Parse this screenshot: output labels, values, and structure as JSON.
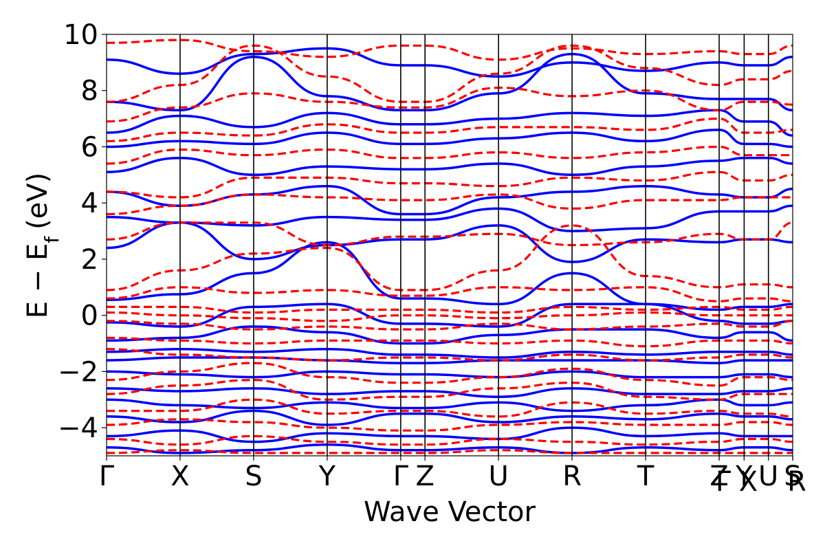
{
  "chart_data": {
    "type": "line",
    "title": "",
    "xlabel": "Wave Vector",
    "ylabel": "E − E",
    "ylabel_subscript": "f",
    "ylabel_unit": "(eV)",
    "ylim": [
      -5,
      10
    ],
    "yticks": [
      -4,
      -2,
      0,
      2,
      4,
      6,
      8,
      10
    ],
    "ytick_labels": [
      "−4",
      "−2",
      "0",
      "2",
      "4",
      "6",
      "8",
      "10"
    ],
    "kpath": [
      {
        "label": "Γ",
        "x": 0.0
      },
      {
        "label": "X",
        "x": 1.0
      },
      {
        "label": "S",
        "x": 2.0
      },
      {
        "label": "Y",
        "x": 3.0
      },
      {
        "label": "Γ",
        "x": 4.0
      },
      {
        "label": "Z",
        "x": 4.33
      },
      {
        "label": "U",
        "x": 5.33
      },
      {
        "label": "R",
        "x": 6.33
      },
      {
        "label": "T",
        "x": 7.33
      },
      {
        "label": "Z",
        "x": 8.33
      },
      {
        "label": "Γ",
        "x": 8.33
      },
      {
        "label": "Y",
        "x": 8.67
      },
      {
        "label": "X",
        "x": 8.67
      },
      {
        "label": "U",
        "x": 9.0
      },
      {
        "label": "S",
        "x": 9.33
      },
      {
        "label": "R",
        "x": 9.33
      }
    ],
    "xlim": [
      0.0,
      9.33
    ],
    "grid": false,
    "legend": "none",
    "series": [
      {
        "style": "solid",
        "color": "#0000ff",
        "bands": [
          [
            0.55,
            0.75,
            1.5,
            2.6,
            0.6,
            0.6,
            0.4,
            1.5,
            0.4,
            0.2,
            0.3,
            0.3,
            0.4,
            0.4
          ],
          [
            2.4,
            3.3,
            2.0,
            2.5,
            2.7,
            2.7,
            3.2,
            1.9,
            2.7,
            2.6,
            2.7,
            2.7,
            2.6,
            2.6
          ],
          [
            3.5,
            3.3,
            3.2,
            3.5,
            3.4,
            3.4,
            3.8,
            3.0,
            3.1,
            3.7,
            3.7,
            3.7,
            3.9,
            3.9
          ],
          [
            4.4,
            3.9,
            4.3,
            4.6,
            3.6,
            3.6,
            4.2,
            4.4,
            4.6,
            4.3,
            4.2,
            4.2,
            4.5,
            4.5
          ],
          [
            5.1,
            5.6,
            5.0,
            5.3,
            5.2,
            5.2,
            5.4,
            5.0,
            5.3,
            5.5,
            5.6,
            5.6,
            5.4,
            5.4
          ],
          [
            6.0,
            6.2,
            6.1,
            6.5,
            6.1,
            6.1,
            6.3,
            6.5,
            6.2,
            6.6,
            6.1,
            6.1,
            6.0,
            6.0
          ],
          [
            6.5,
            7.1,
            6.7,
            7.2,
            6.8,
            6.8,
            7.0,
            7.2,
            7.1,
            7.3,
            6.9,
            6.9,
            6.4,
            6.4
          ],
          [
            7.6,
            7.3,
            9.2,
            7.8,
            7.3,
            7.3,
            7.9,
            9.3,
            7.9,
            7.7,
            7.7,
            7.7,
            7.3,
            7.3
          ],
          [
            9.1,
            8.6,
            9.3,
            9.5,
            8.9,
            8.9,
            8.5,
            9.0,
            8.7,
            9.0,
            8.9,
            8.9,
            9.2,
            9.2
          ],
          [
            -0.25,
            -0.4,
            0.3,
            0.4,
            -0.3,
            -0.3,
            -0.4,
            0.4,
            0.4,
            -0.2,
            -0.3,
            -0.3,
            -0.2,
            -0.2
          ],
          [
            -0.9,
            -0.8,
            -0.4,
            -0.6,
            -1.0,
            -1.0,
            -0.7,
            -0.5,
            -0.5,
            -0.8,
            -0.6,
            -0.6,
            -0.9,
            -0.9
          ],
          [
            -1.3,
            -1.2,
            -1.3,
            -1.2,
            -1.4,
            -1.4,
            -1.5,
            -1.3,
            -1.4,
            -1.3,
            -1.3,
            -1.3,
            -1.4,
            -1.4
          ],
          [
            -1.6,
            -1.5,
            -1.5,
            -1.6,
            -1.7,
            -1.7,
            -1.6,
            -1.6,
            -1.6,
            -1.7,
            -1.6,
            -1.6,
            -1.6,
            -1.6
          ],
          [
            -2.0,
            -2.1,
            -2.2,
            -2.0,
            -2.1,
            -2.1,
            -2.2,
            -2.0,
            -2.2,
            -2.2,
            -2.1,
            -2.1,
            -2.2,
            -2.2
          ],
          [
            -2.6,
            -2.7,
            -2.6,
            -2.8,
            -2.7,
            -2.7,
            -2.9,
            -2.6,
            -2.8,
            -2.8,
            -2.7,
            -2.7,
            -2.6,
            -2.6
          ],
          [
            -3.0,
            -3.2,
            -3.3,
            -3.1,
            -3.3,
            -3.3,
            -3.1,
            -3.4,
            -3.2,
            -3.0,
            -3.2,
            -3.2,
            -3.1,
            -3.1
          ],
          [
            -3.6,
            -3.8,
            -3.4,
            -3.9,
            -3.5,
            -3.5,
            -3.8,
            -3.6,
            -3.7,
            -3.5,
            -3.6,
            -3.6,
            -3.7,
            -3.7
          ],
          [
            -4.3,
            -4.1,
            -4.5,
            -4.2,
            -4.3,
            -4.3,
            -4.4,
            -4.0,
            -4.3,
            -4.2,
            -4.3,
            -4.3,
            -4.3,
            -4.3
          ],
          [
            -4.7,
            -4.9,
            -4.8,
            -4.6,
            -4.8,
            -4.8,
            -4.7,
            -4.9,
            -4.7,
            -4.8,
            -4.7,
            -4.7,
            -4.8,
            -4.8
          ]
        ]
      },
      {
        "style": "dashed",
        "color": "#ff0000",
        "bands": [
          [
            0.6,
            1.0,
            0.8,
            0.9,
            0.7,
            0.7,
            1.0,
            0.9,
            1.0,
            0.5,
            0.6,
            0.6,
            0.5,
            0.5
          ],
          [
            0.9,
            1.6,
            2.2,
            2.4,
            0.9,
            0.9,
            1.6,
            3.2,
            1.4,
            1.0,
            1.1,
            1.1,
            1.0,
            1.0
          ],
          [
            2.7,
            3.3,
            3.3,
            2.5,
            2.8,
            2.8,
            2.9,
            2.5,
            2.6,
            2.9,
            2.7,
            2.7,
            3.3,
            3.3
          ],
          [
            3.6,
            3.9,
            4.3,
            4.2,
            4.1,
            4.1,
            4.3,
            3.8,
            4.1,
            4.1,
            4.2,
            4.2,
            4.2,
            4.2
          ],
          [
            4.4,
            4.2,
            4.9,
            4.9,
            4.7,
            4.7,
            4.6,
            4.9,
            4.8,
            5.1,
            4.8,
            4.8,
            5.0,
            5.0
          ],
          [
            5.4,
            5.9,
            5.7,
            5.9,
            5.6,
            5.6,
            5.8,
            5.6,
            5.8,
            6.0,
            5.7,
            5.7,
            5.7,
            5.7
          ],
          [
            6.2,
            6.5,
            6.4,
            6.8,
            6.5,
            6.5,
            6.7,
            6.7,
            6.6,
            7.0,
            6.5,
            6.5,
            6.6,
            6.6
          ],
          [
            6.9,
            7.4,
            7.9,
            7.6,
            7.4,
            7.4,
            8.1,
            7.8,
            8.0,
            7.3,
            7.6,
            7.6,
            7.5,
            7.5
          ],
          [
            7.6,
            8.2,
            9.6,
            8.5,
            7.6,
            7.6,
            8.6,
            9.6,
            8.8,
            8.2,
            8.4,
            8.4,
            8.7,
            8.7
          ],
          [
            9.7,
            9.8,
            9.4,
            9.2,
            9.6,
            9.6,
            9.1,
            9.5,
            9.3,
            9.4,
            9.3,
            9.3,
            9.6,
            9.6
          ],
          [
            0.3,
            0.3,
            0.1,
            0.2,
            0.2,
            0.2,
            0.1,
            0.3,
            0.2,
            0.3,
            0.2,
            0.2,
            0.3,
            0.3
          ],
          [
            0.1,
            0.0,
            -0.1,
            -0.2,
            0.0,
            0.0,
            -0.1,
            0.0,
            0.1,
            0.0,
            0.0,
            0.0,
            0.0,
            0.0
          ],
          [
            -0.2,
            -0.3,
            -0.5,
            -0.4,
            -0.5,
            -0.5,
            -0.3,
            -0.5,
            -0.4,
            -0.3,
            -0.4,
            -0.4,
            -0.2,
            -0.2
          ],
          [
            -0.8,
            -0.9,
            -1.0,
            -0.9,
            -0.9,
            -0.9,
            -1.0,
            -0.9,
            -1.1,
            -0.9,
            -0.9,
            -0.9,
            -1.0,
            -1.0
          ],
          [
            -1.2,
            -1.4,
            -1.5,
            -1.6,
            -1.5,
            -1.5,
            -1.6,
            -1.4,
            -1.6,
            -1.5,
            -1.4,
            -1.4,
            -1.5,
            -1.5
          ],
          [
            -2.3,
            -2.0,
            -1.7,
            -2.2,
            -2.4,
            -2.4,
            -2.2,
            -1.9,
            -2.3,
            -2.5,
            -2.2,
            -2.2,
            -2.3,
            -2.3
          ],
          [
            -2.8,
            -2.5,
            -2.3,
            -3.0,
            -2.9,
            -2.9,
            -2.6,
            -2.4,
            -2.9,
            -3.0,
            -2.8,
            -2.8,
            -2.8,
            -2.8
          ],
          [
            -3.4,
            -3.4,
            -3.0,
            -3.5,
            -3.4,
            -3.4,
            -3.6,
            -3.1,
            -3.5,
            -3.4,
            -3.5,
            -3.5,
            -3.6,
            -3.6
          ],
          [
            -3.9,
            -3.7,
            -3.8,
            -4.0,
            -4.1,
            -4.1,
            -3.9,
            -3.8,
            -3.9,
            -3.9,
            -3.8,
            -3.8,
            -3.9,
            -3.9
          ],
          [
            -4.4,
            -4.6,
            -4.3,
            -4.5,
            -4.6,
            -4.6,
            -4.4,
            -4.5,
            -4.6,
            -4.5,
            -4.4,
            -4.4,
            -4.5,
            -4.5
          ],
          [
            -4.9,
            -4.8,
            -4.9,
            -4.9,
            -4.9,
            -4.9,
            -4.8,
            -4.9,
            -4.9,
            -4.9,
            -4.9,
            -4.9,
            -4.9,
            -4.9
          ]
        ]
      }
    ]
  }
}
